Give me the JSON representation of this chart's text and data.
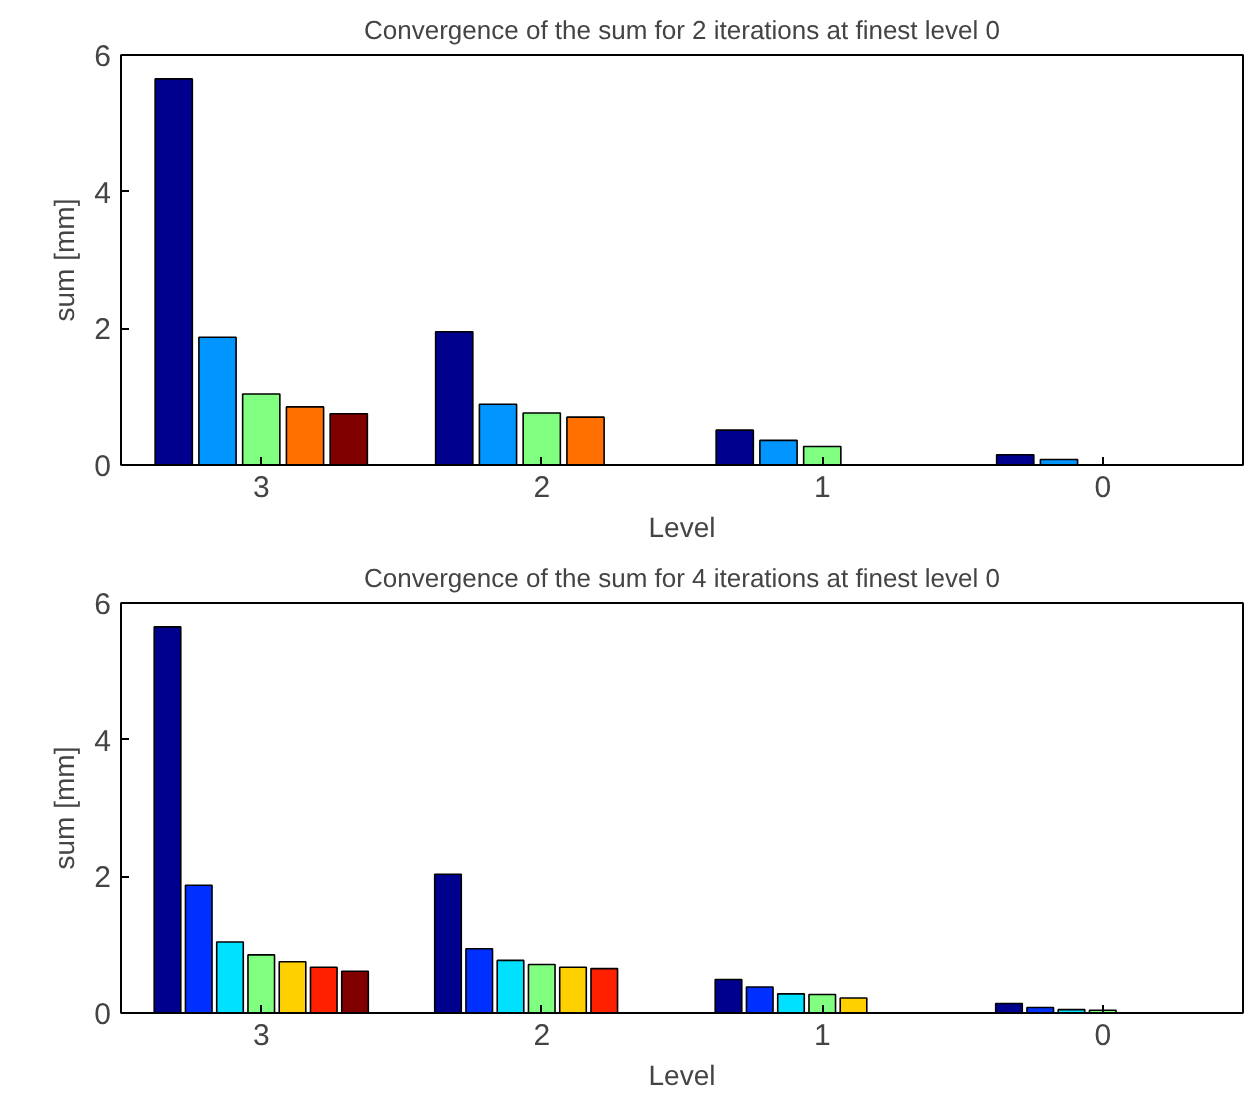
{
  "chart_data": [
    {
      "type": "bar",
      "title": "Convergence of the sum for 2 iterations at finest level 0",
      "xlabel": "Level",
      "ylabel": "sum [mm]",
      "categories": [
        "3",
        "2",
        "1",
        "0"
      ],
      "ylim": [
        0,
        6
      ],
      "yticks": [
        0,
        2,
        4,
        6
      ],
      "grid": false,
      "series": [
        {
          "color": "#00008f",
          "values": [
            5.65,
            1.95,
            0.51,
            0.15
          ]
        },
        {
          "color": "#0095ff",
          "values": [
            1.87,
            0.89,
            0.36,
            0.08
          ]
        },
        {
          "color": "#80ff80",
          "values": [
            1.04,
            0.76,
            0.27,
            0
          ]
        },
        {
          "color": "#ff7000",
          "values": [
            0.85,
            0.7,
            0,
            0
          ]
        },
        {
          "color": "#800000",
          "values": [
            0.75,
            0,
            0,
            0
          ]
        }
      ]
    },
    {
      "type": "bar",
      "title": "Convergence of the sum for 4 iterations at finest level 0",
      "xlabel": "Level",
      "ylabel": "sum [mm]",
      "categories": [
        "3",
        "2",
        "1",
        "0"
      ],
      "ylim": [
        0,
        6
      ],
      "yticks": [
        0,
        2,
        4,
        6
      ],
      "grid": false,
      "series": [
        {
          "color": "#00008f",
          "values": [
            5.65,
            2.03,
            0.49,
            0.14
          ]
        },
        {
          "color": "#0030ff",
          "values": [
            1.87,
            0.94,
            0.38,
            0.08
          ]
        },
        {
          "color": "#00e0ff",
          "values": [
            1.04,
            0.77,
            0.28,
            0.05
          ]
        },
        {
          "color": "#80ff80",
          "values": [
            0.85,
            0.71,
            0.27,
            0.04
          ]
        },
        {
          "color": "#ffd000",
          "values": [
            0.75,
            0.67,
            0.22,
            0
          ]
        },
        {
          "color": "#ff2000",
          "values": [
            0.67,
            0.65,
            0,
            0
          ]
        },
        {
          "color": "#800000",
          "values": [
            0.61,
            0,
            0,
            0
          ]
        }
      ]
    }
  ]
}
